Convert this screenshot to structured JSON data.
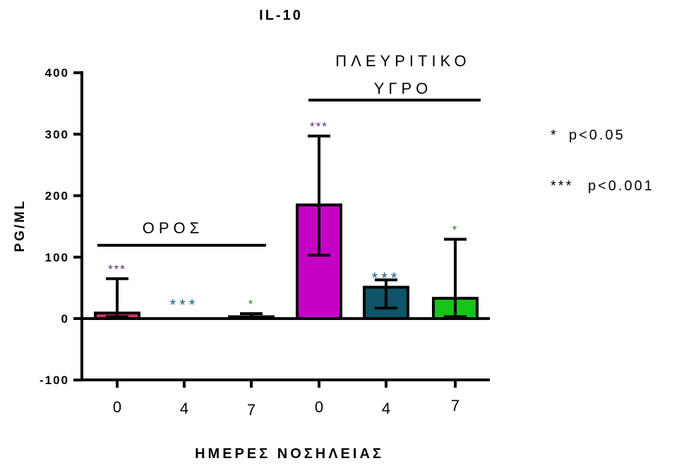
{
  "chart_data": {
    "type": "bar",
    "title": "IL-10",
    "xlabel": "ΗΜΕΡΕΣ ΝΟΣΗΛΕΙΑΣ",
    "ylabel": "PG/ML",
    "ylim": [
      -100,
      400
    ],
    "yticks": [
      "400",
      "300",
      "200",
      "100",
      "0",
      "-100"
    ],
    "categories": [
      "0",
      "4",
      "7",
      "0",
      "4",
      "7"
    ],
    "values": [
      9,
      0,
      3,
      185,
      51,
      33
    ],
    "error_low": [
      3,
      0,
      1,
      103,
      17,
      3
    ],
    "error_high": [
      65,
      0,
      8,
      297,
      63,
      129
    ],
    "bar_colors": [
      "#d6336c",
      "#ffffff",
      "#1b1b1b",
      "#c400c4",
      "#0f5468",
      "#19c41a"
    ],
    "significance": [
      "***",
      "***",
      "*",
      "***",
      "***",
      "*"
    ],
    "significance_colors": [
      "#5c2a7a",
      "#1c5e7a",
      "#2e7d2e",
      "#5c2a7a",
      "#1c5e7a",
      "#2e7d2e"
    ],
    "groups": [
      {
        "label": "ΟΡΟΣ",
        "lines": [
          "ΟΡΟΣ"
        ]
      },
      {
        "label": "ΠΛΕΥΡΙΤΙΚΟ ΥΓΡΟ",
        "lines": [
          "ΠΛΕΥΡΙΤΙΚΟ",
          "ΥΓΡΟ"
        ]
      }
    ],
    "legend": [
      {
        "symbol": "*",
        "text": "p<0.05"
      },
      {
        "symbol": "***",
        "text": "p<0.001"
      }
    ],
    "grid": false
  }
}
